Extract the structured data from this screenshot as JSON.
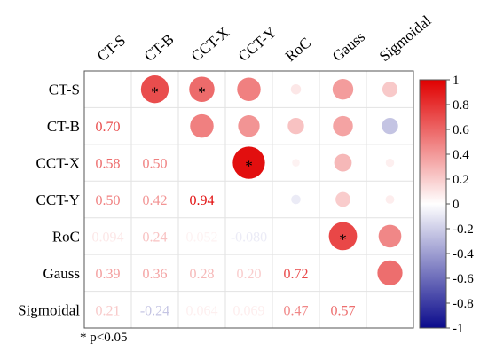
{
  "chart_data": {
    "type": "heatmap",
    "subtype": "correlation-matrix",
    "variables": [
      "CT-S",
      "CT-B",
      "CCT-X",
      "CCT-Y",
      "RoC",
      "Gauss",
      "Sigmoidal"
    ],
    "upper_triangle_display": "circles",
    "lower_triangle_display": "numbers",
    "pairs": [
      {
        "row": "CCT-X",
        "col": "CT-S",
        "value": 0.58,
        "label": "0.58"
      },
      {
        "row": "CCT-Y",
        "col": "CT-S",
        "value": 0.5,
        "label": "0.50"
      },
      {
        "row": "RoC",
        "col": "CT-S",
        "value": 0.094,
        "label": "0.094"
      },
      {
        "row": "Gauss",
        "col": "CT-S",
        "value": 0.39,
        "label": "0.39"
      },
      {
        "row": "Sigmoidal",
        "col": "CT-S",
        "value": 0.21,
        "label": "0.21"
      },
      {
        "row": "CT-B",
        "col": "CT-S",
        "value": 0.7,
        "label": "0.70"
      },
      {
        "row": "CCT-X",
        "col": "CT-B",
        "value": 0.5,
        "label": "0.50"
      },
      {
        "row": "CCT-Y",
        "col": "CT-B",
        "value": 0.42,
        "label": "0.42"
      },
      {
        "row": "RoC",
        "col": "CT-B",
        "value": 0.24,
        "label": "0.24"
      },
      {
        "row": "Gauss",
        "col": "CT-B",
        "value": 0.36,
        "label": "0.36"
      },
      {
        "row": "Sigmoidal",
        "col": "CT-B",
        "value": -0.24,
        "label": "-0.24"
      },
      {
        "row": "CCT-Y",
        "col": "CCT-X",
        "value": 0.94,
        "label": "0.94"
      },
      {
        "row": "RoC",
        "col": "CCT-X",
        "value": 0.052,
        "label": "0.052"
      },
      {
        "row": "Gauss",
        "col": "CCT-X",
        "value": 0.28,
        "label": "0.28"
      },
      {
        "row": "Sigmoidal",
        "col": "CCT-X",
        "value": 0.064,
        "label": "0.064"
      },
      {
        "row": "RoC",
        "col": "CCT-Y",
        "value": -0.08,
        "label": "-0.080"
      },
      {
        "row": "Gauss",
        "col": "CCT-Y",
        "value": 0.2,
        "label": "0.20"
      },
      {
        "row": "Sigmoidal",
        "col": "CCT-Y",
        "value": 0.069,
        "label": "0.069"
      },
      {
        "row": "Gauss",
        "col": "RoC",
        "value": 0.72,
        "label": "0.72"
      },
      {
        "row": "Sigmoidal",
        "col": "RoC",
        "value": 0.47,
        "label": "0.47"
      },
      {
        "row": "Sigmoidal",
        "col": "Gauss",
        "value": 0.57,
        "label": "0.57"
      }
    ],
    "significant_pairs": [
      [
        "CT-B",
        "CT-S"
      ],
      [
        "CCT-X",
        "CT-S"
      ],
      [
        "CCT-Y",
        "CCT-X"
      ],
      [
        "Gauss",
        "RoC"
      ]
    ],
    "significance_marker": "*",
    "colorbar": {
      "range": [
        -1,
        1
      ],
      "ticks": [
        "1",
        "0.8",
        "0.6",
        "0.4",
        "0.2",
        "0",
        "-0.2",
        "-0.4",
        "-0.6",
        "-0.8",
        "-1"
      ],
      "colors": {
        "negative": "#0b0b8c",
        "zero": "#ffffff",
        "positive": "#e00000"
      },
      "placement": "right"
    },
    "footnote": "* p<0.05",
    "grid": true
  }
}
